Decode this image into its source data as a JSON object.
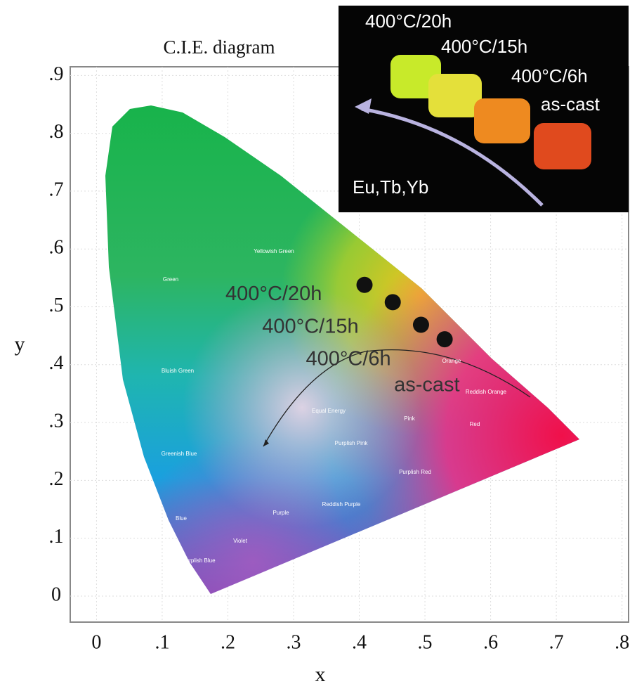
{
  "chart_data": {
    "type": "scatter",
    "title": "C.I.E. diagram",
    "x_label": "x",
    "y_label": "y",
    "xlim": [
      -0.04,
      0.81
    ],
    "ylim": [
      -0.045,
      0.915
    ],
    "xticks": [
      0,
      {
        "value": 0.1,
        "label": ".1"
      },
      {
        "value": 0.2,
        "label": ".2"
      },
      {
        "value": 0.3,
        "label": ".3"
      },
      {
        "value": 0.4,
        "label": ".4"
      },
      {
        "value": 0.5,
        "label": ".5"
      },
      {
        "value": 0.6,
        "label": ".6"
      },
      {
        "value": 0.7,
        "label": ".7"
      },
      {
        "value": 0.8,
        "label": ".8"
      }
    ],
    "yticks": [
      0,
      {
        "value": 0.1,
        "label": ".1"
      },
      {
        "value": 0.2,
        "label": ".2"
      },
      {
        "value": 0.3,
        "label": ".3"
      },
      {
        "value": 0.4,
        "label": ".4"
      },
      {
        "value": 0.5,
        "label": ".5"
      },
      {
        "value": 0.6,
        "label": ".6"
      },
      {
        "value": 0.7,
        "label": ".7"
      },
      {
        "value": 0.8,
        "label": ".8"
      },
      {
        "value": 0.9,
        "label": ".9"
      }
    ],
    "grid": true,
    "points": {
      "x": [
        0.408,
        0.451,
        0.494,
        0.53
      ],
      "y": [
        0.538,
        0.508,
        0.469,
        0.444
      ],
      "labels": [
        "400°C/20h",
        "400°C/15h",
        "400°C/6h",
        "as-cast"
      ],
      "color": "#111111"
    },
    "regions": [
      "Green",
      "Yellowish Green",
      "Bluish Green",
      "Greenish Blue",
      "Blue",
      "Purplish Blue",
      "Violet",
      "Purple",
      "Reddish Purple",
      "Purplish Pink",
      "Purplish Red",
      "Pink",
      "Red",
      "Equal Energy",
      "Orange",
      "Reddish Orange"
    ],
    "inset": {
      "labels": [
        "400°C/20h",
        "400°C/15h",
        "400°C/6h",
        "as-cast"
      ],
      "arrow_label": "Eu,Tb,Yb"
    }
  }
}
